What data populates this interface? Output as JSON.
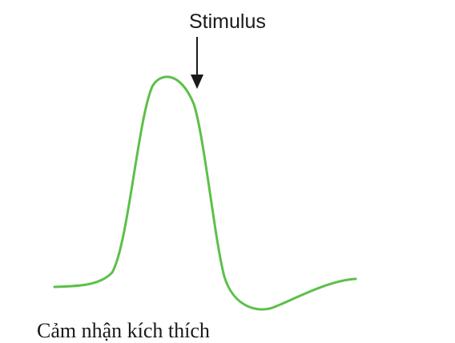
{
  "annotation": {
    "label": "Stimulus"
  },
  "caption": {
    "text": "Cảm nhận kích thích"
  },
  "colors": {
    "curve": "#5cc04a",
    "arrow": "#1a1a1a",
    "text": "#1a1a1a",
    "background": "#ffffff"
  },
  "icons": {
    "arrow": "down-arrow-icon"
  }
}
